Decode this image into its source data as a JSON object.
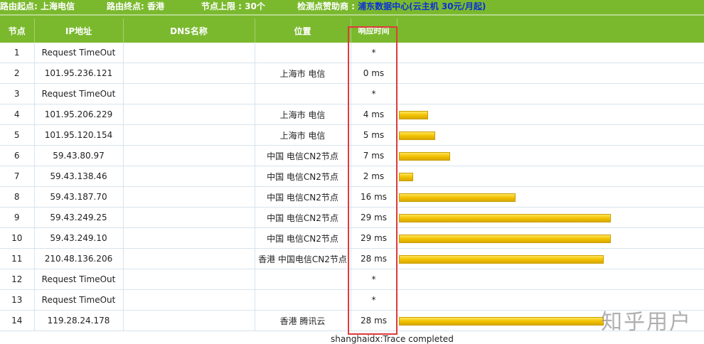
{
  "header": {
    "start": "路由起点: 上海电信",
    "end": "路由终点: 香港",
    "limit": "节点上限 : 30个",
    "sponsor_label": "检测点赞助商 : ",
    "sponsor_name": "浦东数据中心",
    "sponsor_extra": "(云主机 30元/月起)"
  },
  "columns": [
    "节点",
    "IP地址",
    "DNS名称",
    "位置",
    "响应时间"
  ],
  "rows": [
    {
      "n": "1",
      "ip": "Request TimeOut",
      "dns": "",
      "loc": "",
      "time": "*",
      "ms": 0
    },
    {
      "n": "2",
      "ip": "101.95.236.121",
      "dns": "",
      "loc": "上海市 电信",
      "time": "0 ms",
      "ms": 0
    },
    {
      "n": "3",
      "ip": "Request TimeOut",
      "dns": "",
      "loc": "",
      "time": "*",
      "ms": 0
    },
    {
      "n": "4",
      "ip": "101.95.206.229",
      "dns": "",
      "loc": "上海市 电信",
      "time": "4 ms",
      "ms": 4
    },
    {
      "n": "5",
      "ip": "101.95.120.154",
      "dns": "",
      "loc": "上海市 电信",
      "time": "5 ms",
      "ms": 5
    },
    {
      "n": "6",
      "ip": "59.43.80.97",
      "dns": "",
      "loc": "中国 电信CN2节点",
      "time": "7 ms",
      "ms": 7
    },
    {
      "n": "7",
      "ip": "59.43.138.46",
      "dns": "",
      "loc": "中国 电信CN2节点",
      "time": "2 ms",
      "ms": 2
    },
    {
      "n": "8",
      "ip": "59.43.187.70",
      "dns": "",
      "loc": "中国 电信CN2节点",
      "time": "16 ms",
      "ms": 16
    },
    {
      "n": "9",
      "ip": "59.43.249.25",
      "dns": "",
      "loc": "中国 电信CN2节点",
      "time": "29 ms",
      "ms": 29
    },
    {
      "n": "10",
      "ip": "59.43.249.10",
      "dns": "",
      "loc": "中国 电信CN2节点",
      "time": "29 ms",
      "ms": 29
    },
    {
      "n": "11",
      "ip": "210.48.136.206",
      "dns": "",
      "loc": "香港 中国电信CN2节点",
      "time": "28 ms",
      "ms": 28
    },
    {
      "n": "12",
      "ip": "Request TimeOut",
      "dns": "",
      "loc": "",
      "time": "*",
      "ms": 0
    },
    {
      "n": "13",
      "ip": "Request TimeOut",
      "dns": "",
      "loc": "",
      "time": "*",
      "ms": 0
    },
    {
      "n": "14",
      "ip": "119.28.24.178",
      "dns": "",
      "loc": "香港 腾讯云",
      "time": "28 ms",
      "ms": 28
    }
  ],
  "footer": "shanghaidx:Trace completed",
  "watermark": "知乎用户",
  "colors": {
    "header_green": "#7ab92e",
    "bar_yellow": "#f2c200",
    "highlight_red": "#e03a3a",
    "sponsor_blue": "#0a2fd8"
  }
}
